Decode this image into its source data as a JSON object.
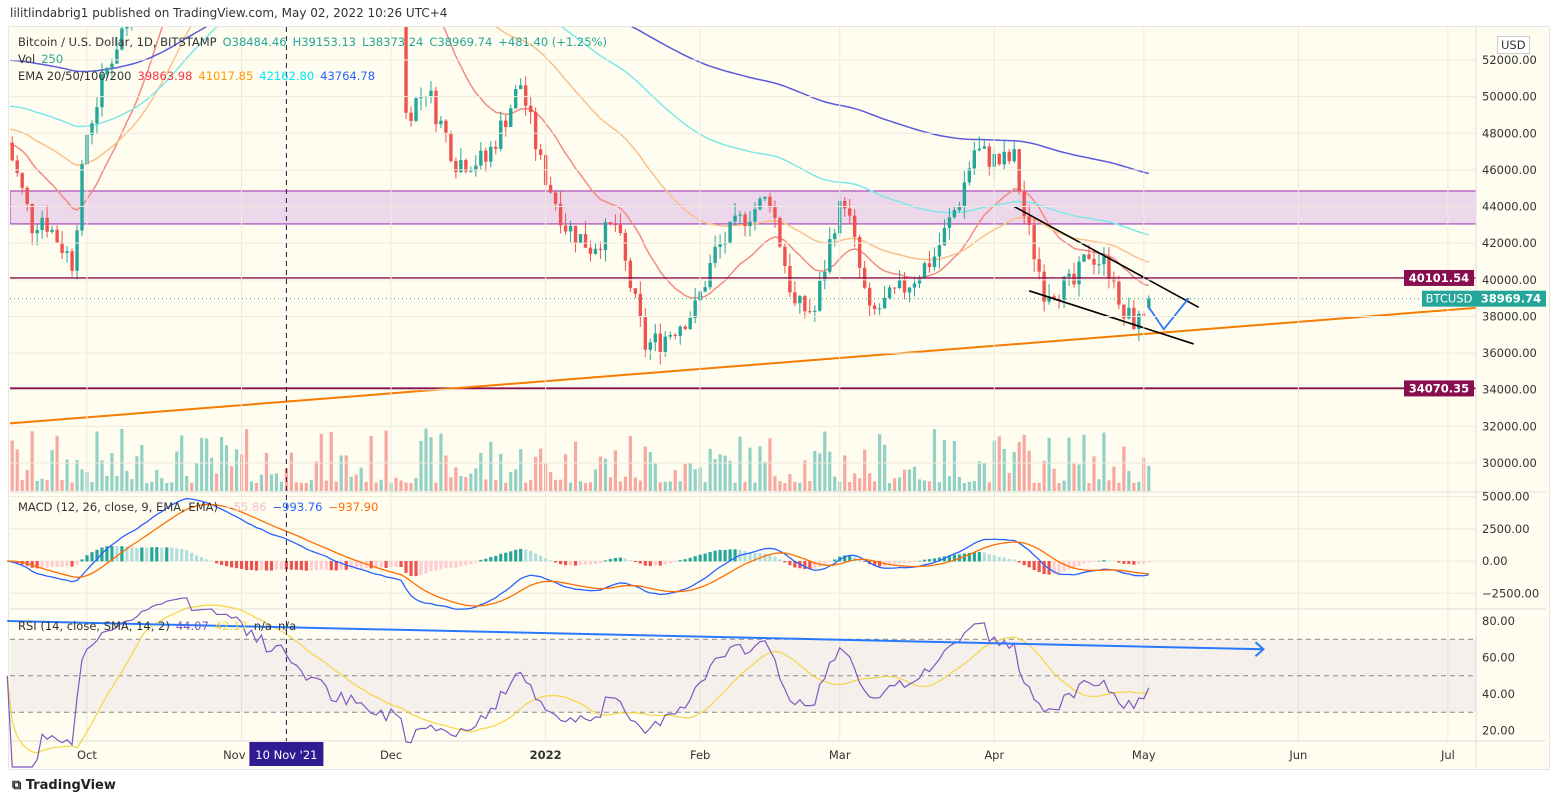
{
  "header": {
    "published": "lilitlindabrig1 published on TradingView.com, May 02, 2022 10:26 UTC+4"
  },
  "legend": {
    "symbol": "Bitcoin / U.S. Dollar, 1D, BITSTAMP",
    "open": "O38484.46",
    "high": "H39153.13",
    "low": "L38373.24",
    "close": "C38969.74",
    "change": "+481.40 (+1.25%)",
    "vol_label": "Vol",
    "vol_value": "250",
    "ema_label": "EMA 20/50/100/200",
    "ema20": "39863.98",
    "ema50": "41017.85",
    "ema100": "42162.80",
    "ema200": "43764.78"
  },
  "macd_legend": {
    "label": "MACD (12, 26, close, 9, EMA, EMA)",
    "hist": "−55.86",
    "macd": "−993.76",
    "signal": "−937.90"
  },
  "rsi_legend": {
    "label": "RSI (14, close, SMA, 14, 2)",
    "rsi": "44.07",
    "sma": "42.17",
    "na1": "n/a",
    "na2": "n/a"
  },
  "currency": "USD",
  "footer": {
    "logo": "TradingView"
  },
  "crosshair": {
    "date_label": "10 Nov '21"
  },
  "colors": {
    "up": "#26a69a",
    "down": "#ef5350",
    "ema20": "#f28b82",
    "ema50": "#f9c08a",
    "ema100": "#7ee8e8",
    "ema200": "#5b5bdb",
    "macd": "#2962ff",
    "signal": "#ff6d00",
    "rsi": "#7e57c2",
    "rsi_sma": "#f5d547",
    "zone": "#e1bee7",
    "level": "#880e4f",
    "trend": "#f57c00"
  },
  "chart_data": {
    "type": "candlestick",
    "price_ticks": [
      "52000.00",
      "50000.00",
      "48000.00",
      "46000.00",
      "44000.00",
      "42000.00",
      "40000.00",
      "38000.00",
      "36000.00",
      "34000.00",
      "32000.00",
      "30000.00"
    ],
    "macd_ticks": [
      "5000.00",
      "2500.00",
      "0.00",
      "−2500.00"
    ],
    "rsi_ticks": [
      "80.00",
      "60.00",
      "40.00",
      "20.00"
    ],
    "time_ticks": [
      {
        "label": "Oct",
        "date": "2021-10-01"
      },
      {
        "label": "Nov",
        "date": "2021-11-01"
      },
      {
        "label": "Dec",
        "date": "2021-12-01"
      },
      {
        "label": "2022",
        "date": "2022-01-01"
      },
      {
        "label": "Feb",
        "date": "2022-02-01"
      },
      {
        "label": "Mar",
        "date": "2022-03-01"
      },
      {
        "label": "Apr",
        "date": "2022-04-01"
      },
      {
        "label": "May",
        "date": "2022-05-01"
      },
      {
        "label": "Jun",
        "date": "2022-06-01"
      },
      {
        "label": "Jul",
        "date": "2022-07-01"
      }
    ],
    "close_path": [
      [
        "2021-09-15",
        47500
      ],
      [
        "2021-09-20",
        43000
      ],
      [
        "2021-09-22",
        43500
      ],
      [
        "2021-09-28",
        41000
      ],
      [
        "2021-10-01",
        48000
      ],
      [
        "2021-10-05",
        51500
      ],
      [
        "2021-10-10",
        55000
      ],
      [
        "2021-10-15",
        61000
      ],
      [
        "2021-10-20",
        66000
      ],
      [
        "2021-11-10",
        65000
      ],
      [
        "2021-12-03",
        57000
      ],
      [
        "2021-12-04",
        49000
      ],
      [
        "2021-12-08",
        50500
      ],
      [
        "2021-12-14",
        46500
      ],
      [
        "2021-12-20",
        46500
      ],
      [
        "2021-12-27",
        50700
      ],
      [
        "2021-12-31",
        46300
      ],
      [
        "2022-01-05",
        43000
      ],
      [
        "2022-01-10",
        41800
      ],
      [
        "2022-01-15",
        43000
      ],
      [
        "2022-01-21",
        36400
      ],
      [
        "2022-01-24",
        36700
      ],
      [
        "2022-01-31",
        38400
      ],
      [
        "2022-02-04",
        41500
      ],
      [
        "2022-02-10",
        43500
      ],
      [
        "2022-02-15",
        44500
      ],
      [
        "2022-02-20",
        38500
      ],
      [
        "2022-02-24",
        38300
      ],
      [
        "2022-02-28",
        43200
      ],
      [
        "2022-03-02",
        44400
      ],
      [
        "2022-03-07",
        38000
      ],
      [
        "2022-03-14",
        39600
      ],
      [
        "2022-03-20",
        41300
      ],
      [
        "2022-03-25",
        44400
      ],
      [
        "2022-03-28",
        47100
      ],
      [
        "2022-04-02",
        46400
      ],
      [
        "2022-04-05",
        46600
      ],
      [
        "2022-04-07",
        43500
      ],
      [
        "2022-04-11",
        39500
      ],
      [
        "2022-04-17",
        39700
      ],
      [
        "2022-04-20",
        41500
      ],
      [
        "2022-04-25",
        40400
      ],
      [
        "2022-04-26",
        38100
      ],
      [
        "2022-04-30",
        37700
      ],
      [
        "2022-05-02",
        38970
      ]
    ],
    "zone": [
      43050,
      44850
    ],
    "levels": [
      {
        "label": "40101.54",
        "value": 40101.54
      },
      {
        "label": "34070.35",
        "value": 34070.35
      }
    ],
    "last_price": {
      "symbol": "BTCUSD",
      "value": "38969.74"
    },
    "trendline": [
      [
        "2021-09-15",
        32150
      ],
      [
        "2022-07-08",
        38500
      ]
    ],
    "wedge_upper": [
      [
        "2022-04-05",
        44000
      ],
      [
        "2022-05-12",
        38500
      ]
    ],
    "wedge_lower": [
      [
        "2022-04-08",
        39400
      ],
      [
        "2022-05-11",
        36500
      ]
    ],
    "projection": [
      [
        "2022-05-02",
        38500
      ],
      [
        "2022-05-05",
        37300
      ],
      [
        "2022-05-10",
        39000
      ]
    ],
    "rsi_divergence": [
      [
        "2021-09-15",
        80
      ],
      [
        "2022-05-25",
        64.5
      ]
    ],
    "rsi_bands": [
      70,
      50,
      30
    ]
  }
}
